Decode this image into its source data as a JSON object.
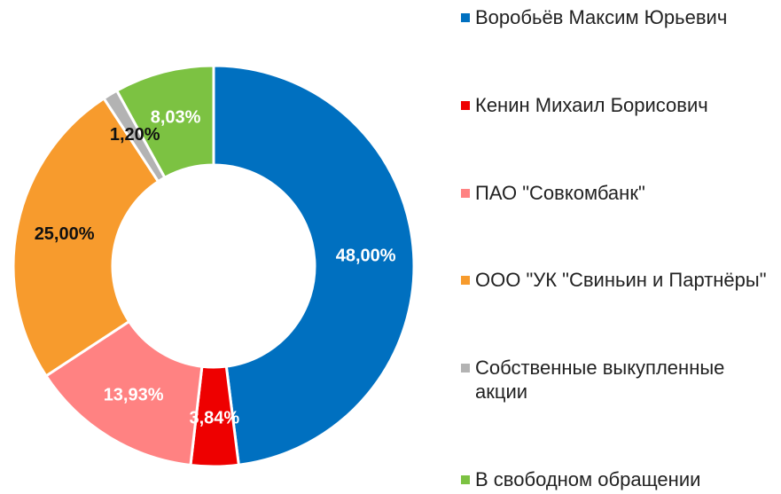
{
  "chart_data": {
    "type": "donut",
    "categories": [
      "Воробьёв Максим Юрьевич",
      "Кенин Михаил Борисович",
      "ПАО \"Совкомбанк\"",
      "ООО \"УК \"Свиньин и Партнёры\"",
      "Собственные выкупленные акции",
      "В свободном обращении"
    ],
    "values": [
      48.0,
      3.84,
      13.93,
      25.0,
      1.2,
      8.03
    ],
    "value_labels": [
      "48,00%",
      "3,84%",
      "13,93%",
      "25,00%",
      "1,20%",
      "8,03%"
    ],
    "colors": [
      "#0070c0",
      "#ee0000",
      "#ff8282",
      "#f79b2d",
      "#b3b3b3",
      "#7cc242"
    ],
    "label_colors": [
      "#ffffff",
      "#ffffff",
      "#ffffff",
      "#111111",
      "#111111",
      "#ffffff"
    ],
    "legend": "right"
  }
}
